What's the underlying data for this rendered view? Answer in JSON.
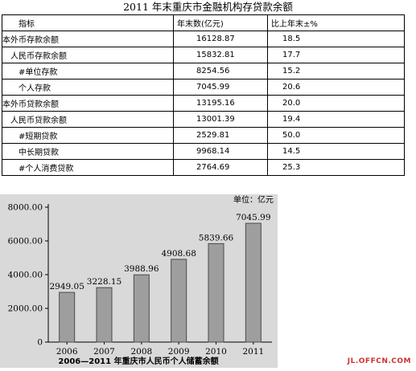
{
  "document": {
    "title": "2011 年末重庆市金融机构存贷款余额",
    "table": {
      "headers": [
        "指标",
        "年末数(亿元)",
        "比上年末±%"
      ],
      "rows": [
        {
          "label": "本外币存款余额",
          "value": "16128.87",
          "change": "18.5",
          "indent": 0
        },
        {
          "label": "人民币存款余额",
          "value": "15832.81",
          "change": "17.7",
          "indent": 1
        },
        {
          "label": "#单位存款",
          "value": "8254.56",
          "change": "15.2",
          "indent": 2
        },
        {
          "label": "个人存款",
          "value": "7045.99",
          "change": "20.6",
          "indent": 2
        },
        {
          "label": "本外币贷款余额",
          "value": "13195.16",
          "change": "20.0",
          "indent": 0
        },
        {
          "label": "人民币贷款余额",
          "value": "13001.39",
          "change": "19.4",
          "indent": 1
        },
        {
          "label": "#短期贷款",
          "value": "2529.81",
          "change": "50.0",
          "indent": 2
        },
        {
          "label": "中长期贷款",
          "value": "9968.14",
          "change": "14.5",
          "indent": 2
        },
        {
          "label": "#个人消费贷款",
          "value": "2764.69",
          "change": "25.3",
          "indent": 2
        }
      ]
    }
  },
  "chart_data": {
    "type": "bar",
    "title": "2006—2011 年重庆市人民币个人储蓄余额",
    "unit_label": "单位：亿元",
    "categories": [
      "2006",
      "2007",
      "2008",
      "2009",
      "2010",
      "2011"
    ],
    "values": [
      2949.05,
      3228.15,
      3988.96,
      4908.68,
      5839.66,
      7045.99
    ],
    "value_labels": [
      "2949.05",
      "3228.15",
      "3988.96",
      "4908.68",
      "5839.66",
      "7045.99"
    ],
    "ylim": [
      0,
      8000
    ],
    "yticks": [
      0,
      2000,
      4000,
      6000,
      8000
    ],
    "ytick_labels": [
      "0",
      "2000.00",
      "4000.00",
      "6000.00",
      "8000.00"
    ],
    "grid": false,
    "colors": {
      "bar": "#9e9e9e",
      "bar_edge": "#4a4a4a",
      "background": "#d9d9d9"
    }
  },
  "watermark": "JL.OFFCN.COM"
}
